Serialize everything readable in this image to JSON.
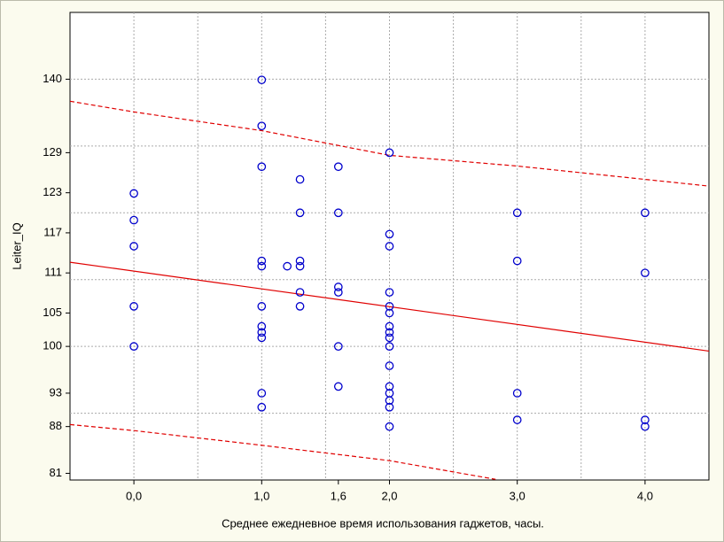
{
  "chart_data": {
    "type": "scatter",
    "x_label": "Среднее ежедневное время использования гаджетов, часы.",
    "y_label": "Leiter_IQ",
    "color": "#0000cc",
    "x": [
      0,
      0,
      0,
      0,
      0,
      1,
      1,
      1,
      1,
      1,
      1,
      1,
      1,
      1,
      1,
      1,
      1.2,
      1.3,
      1.3,
      1.3,
      1.3,
      1.3,
      1.3,
      1.6,
      1.6,
      1.6,
      1.6,
      1.6,
      1.6,
      2,
      2,
      2,
      2,
      2,
      2,
      2,
      2,
      2,
      2,
      2,
      2,
      2,
      2,
      2,
      2,
      3,
      3,
      3,
      3,
      4,
      4,
      4,
      4
    ],
    "values": [
      122.9,
      118.9,
      115,
      106,
      100,
      139.9,
      133,
      126.9,
      112.8,
      112,
      106,
      103,
      102.1,
      101.3,
      93,
      90.9,
      112,
      125,
      120,
      112.8,
      112,
      108.1,
      106,
      126.9,
      120,
      108.9,
      108.1,
      100,
      94,
      129,
      116.8,
      115,
      108.1,
      106,
      105,
      103,
      102.1,
      101.3,
      100,
      97.1,
      94,
      93,
      91.9,
      90.9,
      88,
      120,
      112.8,
      93,
      89,
      120,
      111,
      89,
      88
    ],
    "regression": {
      "color": "#e00000",
      "x": [
        -0.5,
        4.5
      ],
      "values": [
        112.6,
        99.3
      ]
    },
    "upper_band": {
      "color": "#e00000",
      "x": [
        -0.5,
        0,
        1,
        2,
        3,
        4.5
      ],
      "values": [
        136.7,
        135.1,
        132.3,
        128.6,
        127,
        124
      ]
    },
    "lower_band": {
      "color": "#e00000",
      "x": [
        -0.5,
        0,
        1,
        2,
        2.83
      ],
      "values": [
        88.3,
        87.4,
        85.2,
        82.9,
        80.1
      ]
    },
    "xlim": [
      -0.5,
      4.5
    ],
    "ylim": [
      80,
      150
    ],
    "xticks": [
      {
        "value": 0,
        "label": "0,0"
      },
      {
        "value": 1,
        "label": "1,0"
      },
      {
        "value": 1.6,
        "label": "1,6"
      },
      {
        "value": 2,
        "label": "2,0"
      },
      {
        "value": 3,
        "label": "3,0"
      },
      {
        "value": 4,
        "label": "4,0"
      }
    ],
    "yticks": [
      140,
      129,
      123,
      117,
      111,
      105,
      100,
      93,
      88,
      81
    ],
    "xgrid": [
      0,
      0.5,
      1,
      1.5,
      2,
      2.5,
      3,
      3.5,
      4
    ],
    "ygrid": [
      90,
      100,
      110,
      120,
      130,
      140
    ],
    "grid": true
  }
}
